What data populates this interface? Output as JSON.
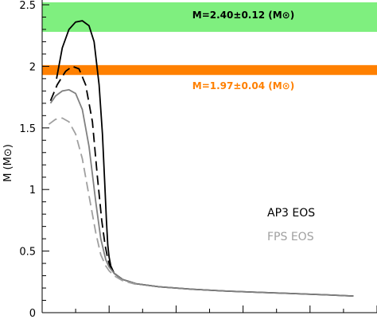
{
  "chart_data": {
    "type": "line",
    "title": "",
    "xlabel": "",
    "ylabel": "M (M⊙)",
    "ylim": [
      0,
      2.5
    ],
    "xlim": [
      0,
      1
    ],
    "yticks": [
      "0",
      "0.5",
      "1",
      "1.5",
      "2",
      "2.5"
    ],
    "grid": false,
    "bands": [
      {
        "name": "M=2.40±0.12 (M⊙)",
        "range": [
          2.28,
          2.52
        ],
        "color": "#7fef7f",
        "label_color": "#000000"
      },
      {
        "name": "M=1.97±0.04 (M⊙)",
        "range": [
          1.93,
          2.01
        ],
        "color": "#ff8000",
        "label_color": "#ff8000"
      }
    ],
    "series": [
      {
        "name": "AP3 EOS",
        "style": "solid",
        "color": "#000000",
        "x": [
          0.043,
          0.06,
          0.08,
          0.1,
          0.12,
          0.14,
          0.155,
          0.17,
          0.18,
          0.187,
          0.192,
          0.196,
          0.2,
          0.205,
          0.215,
          0.24,
          0.28,
          0.35,
          0.45,
          0.55,
          0.65,
          0.75,
          0.85,
          0.93
        ],
        "y": [
          1.9,
          2.15,
          2.3,
          2.36,
          2.37,
          2.33,
          2.2,
          1.85,
          1.45,
          1.05,
          0.75,
          0.55,
          0.45,
          0.38,
          0.32,
          0.27,
          0.235,
          0.21,
          0.19,
          0.175,
          0.165,
          0.155,
          0.145,
          0.135
        ]
      },
      {
        "name": "AP3 EOS (dashed)",
        "style": "dashed",
        "color": "#000000",
        "x": [
          0.025,
          0.045,
          0.07,
          0.09,
          0.11,
          0.13,
          0.15,
          0.165,
          0.178,
          0.188,
          0.195,
          0.2,
          0.205,
          0.215,
          0.24,
          0.28
        ],
        "y": [
          1.72,
          1.85,
          1.96,
          2.0,
          1.98,
          1.85,
          1.55,
          1.1,
          0.75,
          0.55,
          0.45,
          0.4,
          0.36,
          0.32,
          0.27,
          0.235
        ]
      },
      {
        "name": "FPS EOS",
        "style": "solid",
        "color": "#808080",
        "x": [
          0.025,
          0.04,
          0.06,
          0.08,
          0.1,
          0.12,
          0.14,
          0.16,
          0.175,
          0.19,
          0.2,
          0.215,
          0.24,
          0.28,
          0.35,
          0.45,
          0.55,
          0.65,
          0.75,
          0.85,
          0.93
        ],
        "y": [
          1.7,
          1.76,
          1.8,
          1.81,
          1.78,
          1.65,
          1.35,
          0.9,
          0.6,
          0.43,
          0.37,
          0.32,
          0.27,
          0.235,
          0.21,
          0.19,
          0.175,
          0.165,
          0.155,
          0.145,
          0.135
        ]
      },
      {
        "name": "FPS EOS (dashed)",
        "style": "dashed",
        "color": "#a0a0a0",
        "x": [
          0.02,
          0.04,
          0.06,
          0.08,
          0.1,
          0.12,
          0.14,
          0.16,
          0.175,
          0.19,
          0.2,
          0.215,
          0.24,
          0.28
        ],
        "y": [
          1.53,
          1.57,
          1.58,
          1.55,
          1.45,
          1.25,
          0.95,
          0.65,
          0.47,
          0.38,
          0.34,
          0.3,
          0.26,
          0.23
        ]
      }
    ],
    "legend": [
      {
        "label": "AP3 EOS",
        "color": "#000000",
        "position": "right-middle"
      },
      {
        "label": "FPS EOS",
        "color": "#a0a0a0",
        "position": "right-middle"
      }
    ]
  }
}
